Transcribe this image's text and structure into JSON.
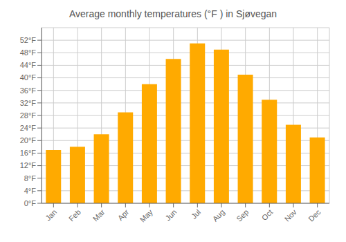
{
  "chart_data": {
    "type": "bar",
    "title": "Average monthly temperatures (°F ) in Sjøvegan",
    "categories": [
      "Jan",
      "Feb",
      "Mar",
      "Apr",
      "May",
      "Jun",
      "Jul",
      "Aug",
      "Sep",
      "Oct",
      "Nov",
      "Dec"
    ],
    "values": [
      17,
      18,
      22,
      29,
      38,
      46,
      51,
      49,
      41,
      33,
      25,
      21
    ],
    "color": "#FFAA00",
    "ylim": [
      0,
      56
    ],
    "yticks": [
      {
        "value": 0,
        "label": "0°F"
      },
      {
        "value": 4,
        "label": "4°F"
      },
      {
        "value": 8,
        "label": "8°F"
      },
      {
        "value": 12,
        "label": "12°F"
      },
      {
        "value": 16,
        "label": "16°F"
      },
      {
        "value": 20,
        "label": "20°F"
      },
      {
        "value": 24,
        "label": "24°F"
      },
      {
        "value": 28,
        "label": "28°F"
      },
      {
        "value": 32,
        "label": "32°F"
      },
      {
        "value": 36,
        "label": "36°F"
      },
      {
        "value": 40,
        "label": "40°F"
      },
      {
        "value": 44,
        "label": "44°F"
      },
      {
        "value": 48,
        "label": "48°F"
      },
      {
        "value": 52,
        "label": "52°F"
      }
    ],
    "grid": true
  }
}
